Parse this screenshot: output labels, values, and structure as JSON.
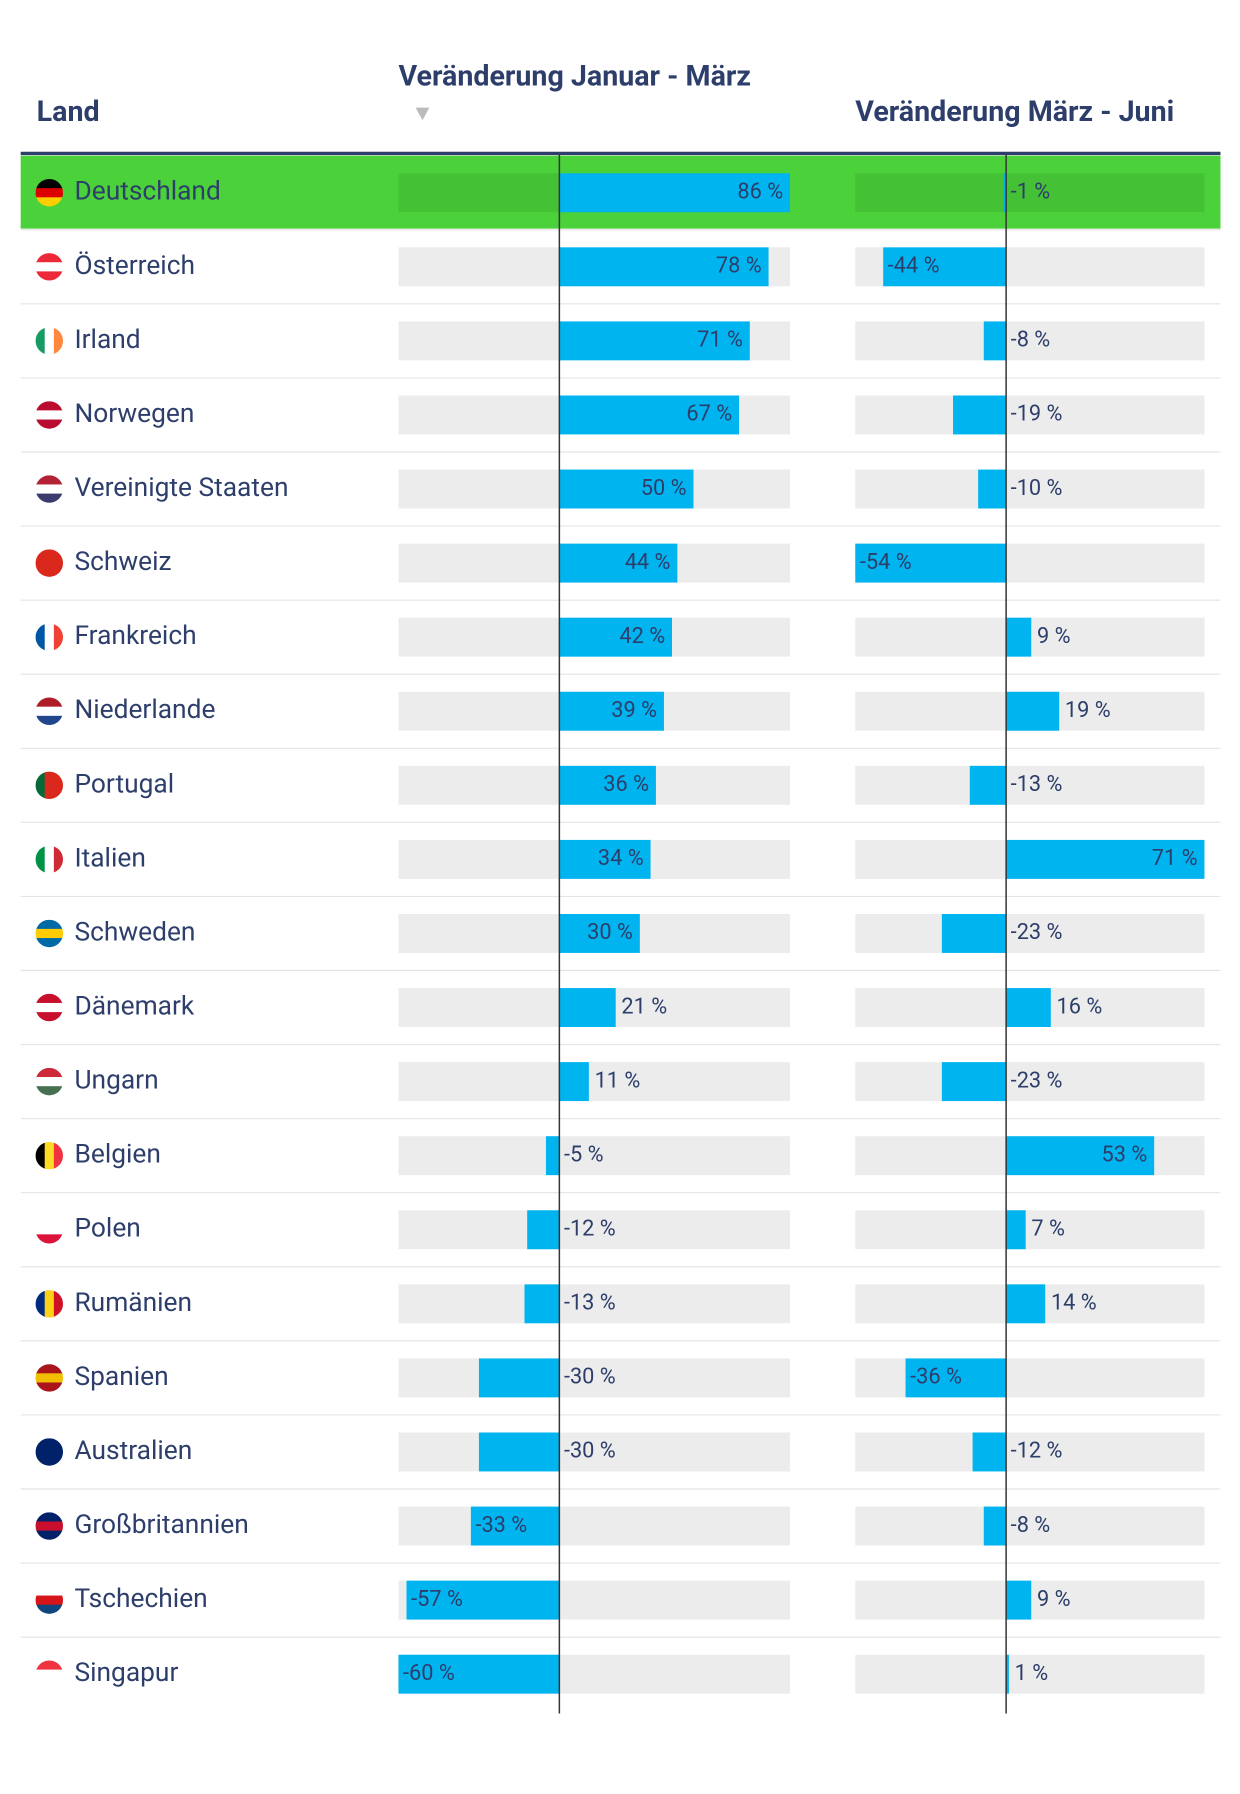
{
  "table": {
    "headers": {
      "country": "Land",
      "change_1": "Veränderung Januar - März",
      "change_2": "Veränderung März - Juni"
    },
    "highlight_row": 0,
    "highlight_color": "#4bd23a",
    "bar_color": "#00b4f0",
    "track_color": "#ececec",
    "countries": [
      "Deutschland",
      "Österreich",
      "Irland",
      "Norwegen",
      "Vereinigte Staaten",
      "Schweiz",
      "Frankreich",
      "Niederlande",
      "Portugal",
      "Italien",
      "Schweden",
      "Dänemark",
      "Ungarn",
      "Belgien",
      "Polen",
      "Rumänien",
      "Spanien",
      "Australien",
      "Großbritannien",
      "Tschechien",
      "Singapur"
    ],
    "series": [
      {
        "name": "Veränderung Januar - März",
        "xlim": [
          -60,
          86
        ],
        "values": [
          86,
          78,
          71,
          67,
          50,
          44,
          42,
          39,
          36,
          34,
          30,
          21,
          11,
          -5,
          -12,
          -13,
          -30,
          -30,
          -33,
          -57,
          -60
        ],
        "value_labels": [
          "86 %",
          "78 %",
          "71 %",
          "67 %",
          "50 %",
          "44 %",
          "42 %",
          "39 %",
          "36 %",
          "34 %",
          "30 %",
          "21 %",
          "11 %",
          "-5 %",
          "-12 %",
          "-13 %",
          "-30 %",
          "-30 %",
          "-33 %",
          "-57 %",
          "-60 %"
        ]
      },
      {
        "name": "Veränderung März - Juni",
        "xlim": [
          -54,
          71
        ],
        "values": [
          -1,
          -44,
          -8,
          -19,
          -10,
          -54,
          9,
          19,
          -13,
          71,
          -23,
          16,
          -23,
          53,
          7,
          14,
          -36,
          -12,
          -8,
          9,
          1
        ],
        "value_labels": [
          "-1 %",
          "-44 %",
          "-8 %",
          "-19 %",
          "-10 %",
          "-54 %",
          "9 %",
          "19 %",
          "-13 %",
          "71 %",
          "-23 %",
          "16 %",
          "-23 %",
          "53 %",
          "7 %",
          "14 %",
          "-36 %",
          "-12 %",
          "-8 %",
          "9 %",
          "1 %"
        ]
      }
    ]
  }
}
